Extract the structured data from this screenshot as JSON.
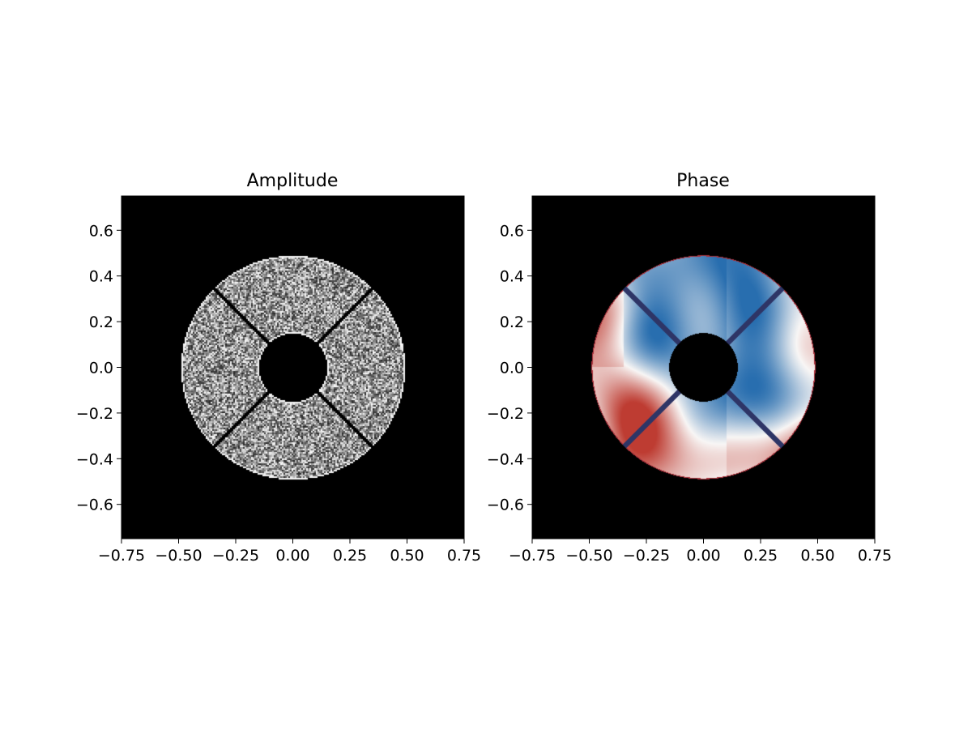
{
  "chart_data": [
    {
      "type": "heatmap",
      "title": "Amplitude",
      "colormap": "gray",
      "background": "#000000",
      "xlim": [
        -0.75,
        0.75
      ],
      "ylim": [
        -0.75,
        0.75
      ],
      "xticks": [
        "−0.75",
        "−0.50",
        "−0.25",
        "0.00",
        "0.25",
        "0.50",
        "0.75"
      ],
      "xtick_values": [
        -0.75,
        -0.5,
        -0.25,
        0,
        0.25,
        0.5,
        0.75
      ],
      "yticks": [
        "0.6",
        "0.4",
        "0.2",
        "0.0",
        "−0.2",
        "−0.4",
        "−0.6"
      ],
      "ytick_values": [
        0.6,
        0.4,
        0.2,
        0,
        -0.2,
        -0.4,
        -0.6
      ],
      "aperture": {
        "outer_radius": 0.49,
        "inner_radius": 0.15,
        "spider_angles_deg": [
          45,
          135,
          225,
          315
        ],
        "spider_width": 0.015
      }
    },
    {
      "type": "heatmap",
      "title": "Phase",
      "colormap": "RdBu_r",
      "background": "#000000",
      "spider_color": "#2e3566",
      "xlim": [
        -0.75,
        0.75
      ],
      "ylim": [
        -0.75,
        0.75
      ],
      "xticks": [
        "−0.75",
        "−0.50",
        "−0.25",
        "0.00",
        "0.25",
        "0.50",
        "0.75"
      ],
      "xtick_values": [
        -0.75,
        -0.5,
        -0.25,
        0,
        0.25,
        0.5,
        0.75
      ],
      "yticks": [
        "0.6",
        "0.4",
        "0.2",
        "0.0",
        "−0.2",
        "−0.4",
        "−0.6"
      ],
      "ytick_values": [
        0.6,
        0.4,
        0.2,
        0,
        -0.2,
        -0.4,
        -0.6
      ],
      "aperture": {
        "outer_radius": 0.49,
        "inner_radius": 0.15,
        "spider_angles_deg": [
          45,
          135,
          225,
          315
        ],
        "spider_width": 0.025
      }
    }
  ]
}
